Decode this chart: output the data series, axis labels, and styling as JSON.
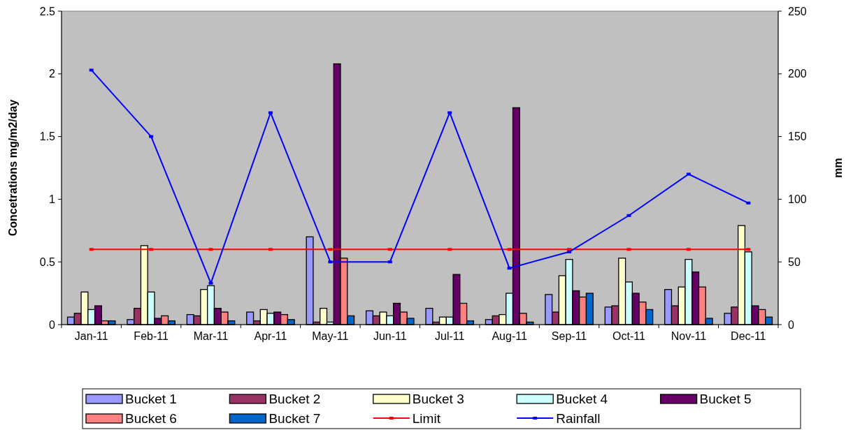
{
  "chart_data": {
    "type": "bar",
    "ylabel": "Concetrations mg/m2/day",
    "y2label": "mm",
    "categories": [
      "Jan-11",
      "Feb-11",
      "Mar-11",
      "Apr-11",
      "May-11",
      "Jun-11",
      "Jul-11",
      "Aug-11",
      "Sep-11",
      "Oct-11",
      "Nov-11",
      "Dec-11"
    ],
    "ylim": [
      0,
      2.5
    ],
    "yticks": [
      0,
      0.5,
      1,
      1.5,
      2,
      2.5
    ],
    "y2lim": [
      0,
      250
    ],
    "y2ticks": [
      0,
      50,
      100,
      150,
      200,
      250
    ],
    "legend": "bottom",
    "grid": false,
    "marker": "square",
    "series": [
      {
        "name": "Bucket 1",
        "color": "#9999ff",
        "values": [
          0.06,
          0.04,
          0.08,
          0.1,
          0.7,
          0.11,
          0.13,
          0.04,
          0.24,
          0.14,
          0.28,
          0.09
        ]
      },
      {
        "name": "Bucket 2",
        "color": "#993366",
        "values": [
          0.09,
          0.13,
          0.07,
          0.03,
          0.02,
          0.07,
          0.02,
          0.07,
          0.1,
          0.15,
          0.15,
          0.14
        ]
      },
      {
        "name": "Bucket 3",
        "color": "#ffffcc",
        "values": [
          0.26,
          0.63,
          0.28,
          0.12,
          0.13,
          0.1,
          0.06,
          0.08,
          0.39,
          0.53,
          0.3,
          0.79
        ]
      },
      {
        "name": "Bucket 4",
        "color": "#ccffff",
        "values": [
          0.12,
          0.26,
          0.31,
          0.09,
          0.02,
          0.07,
          0.06,
          0.25,
          0.52,
          0.34,
          0.52,
          0.58
        ]
      },
      {
        "name": "Bucket 5",
        "color": "#660066",
        "values": [
          0.15,
          0.05,
          0.13,
          0.1,
          2.08,
          0.17,
          0.4,
          1.73,
          0.27,
          0.25,
          0.42,
          0.15
        ]
      },
      {
        "name": "Bucket 6",
        "color": "#ff8080",
        "values": [
          0.03,
          0.07,
          0.1,
          0.08,
          0.53,
          0.1,
          0.17,
          0.09,
          0.22,
          0.18,
          0.3,
          0.12
        ]
      },
      {
        "name": "Bucket 7",
        "color": "#0066cc",
        "values": [
          0.03,
          0.03,
          0.03,
          0.04,
          0.07,
          0.05,
          0.03,
          0.02,
          0.25,
          0.12,
          0.05,
          0.06
        ]
      },
      {
        "name": "Limit",
        "type": "line",
        "color": "#ff0000",
        "values": [
          0.6,
          0.6,
          0.6,
          0.6,
          0.6,
          0.6,
          0.6,
          0.6,
          0.6,
          0.6,
          0.6,
          0.6
        ]
      },
      {
        "name": "Rainfall",
        "type": "line",
        "axis": "y2",
        "color": "#0000ff",
        "values": [
          203,
          150,
          33,
          169,
          50,
          50,
          169,
          45,
          58,
          87,
          120,
          97
        ]
      }
    ]
  }
}
